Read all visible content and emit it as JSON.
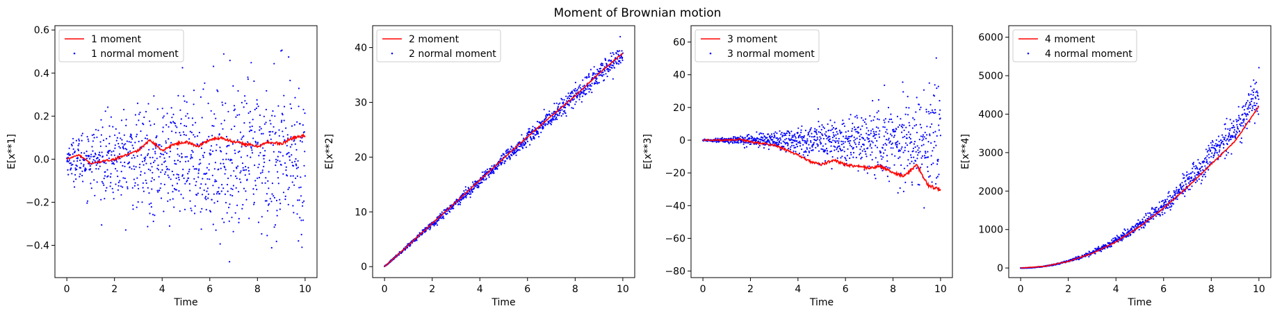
{
  "suptitle": "Moment of Brownian motion",
  "colors": {
    "line": "#ff0000",
    "points": "#0000ff",
    "axes": "#000000",
    "legend_border": "#cccccc"
  },
  "chart_data": [
    {
      "type": "line+scatter",
      "moment": 1,
      "xlabel": "Time",
      "ylabel": "E[x**1]",
      "xlim": [
        -0.5,
        10.5
      ],
      "ylim": [
        -0.55,
        0.62
      ],
      "xticks": [
        0,
        2,
        4,
        6,
        8,
        10
      ],
      "yticks": [
        -0.4,
        -0.2,
        0.0,
        0.2,
        0.4,
        0.6
      ],
      "ytick_labels": [
        "−0.4",
        "−0.2",
        "0.0",
        "0.2",
        "0.4",
        "0.6"
      ],
      "legend": {
        "placement": "upper-left",
        "entries": [
          "1 moment",
          "1 normal moment"
        ]
      },
      "series": [
        {
          "name": "1 moment",
          "kind": "line",
          "x": [
            0,
            0.5,
            1,
            1.5,
            2,
            2.5,
            3,
            3.5,
            4,
            4.5,
            5,
            5.5,
            6,
            6.5,
            7,
            7.5,
            8,
            8.5,
            9,
            9.5,
            10
          ],
          "y": [
            0.0,
            0.02,
            -0.02,
            -0.01,
            0.0,
            0.02,
            0.04,
            0.09,
            0.04,
            0.07,
            0.08,
            0.06,
            0.09,
            0.1,
            0.08,
            0.07,
            0.06,
            0.08,
            0.07,
            0.1,
            0.11
          ]
        },
        {
          "name": "1 normal moment",
          "kind": "scatter",
          "n": 1000,
          "mean": 0.0,
          "spread_end": 0.32
        }
      ]
    },
    {
      "type": "line+scatter",
      "moment": 2,
      "xlabel": "Time",
      "ylabel": "E[x**2]",
      "xlim": [
        -0.5,
        10.5
      ],
      "ylim": [
        -2.0,
        44.0
      ],
      "xticks": [
        0,
        2,
        4,
        6,
        8,
        10
      ],
      "yticks": [
        0,
        10,
        20,
        30,
        40
      ],
      "ytick_labels": [
        "0",
        "10",
        "20",
        "30",
        "40"
      ],
      "legend": {
        "placement": "upper-left",
        "entries": [
          "2 moment",
          "2 normal moment"
        ]
      },
      "series": [
        {
          "name": "2 moment",
          "kind": "line",
          "x": [
            0,
            1,
            2,
            3,
            4,
            5,
            6,
            7,
            8,
            9,
            10
          ],
          "y": [
            0,
            3.9,
            7.9,
            11.8,
            15.8,
            19.8,
            23.7,
            27.5,
            31.2,
            35.3,
            39.0
          ]
        },
        {
          "name": "2 normal moment",
          "kind": "scatter",
          "n": 1000,
          "mean_slope": 3.9,
          "spread_end": 2.2
        }
      ]
    },
    {
      "type": "line+scatter",
      "moment": 3,
      "xlabel": "Time",
      "ylabel": "E[x**3]",
      "xlim": [
        -0.5,
        10.5
      ],
      "ylim": [
        -84.0,
        70.0
      ],
      "xticks": [
        0,
        2,
        4,
        6,
        8,
        10
      ],
      "yticks": [
        -80,
        -60,
        -40,
        -20,
        0,
        20,
        40,
        60
      ],
      "ytick_labels": [
        "−80",
        "−60",
        "−40",
        "−20",
        "0",
        "20",
        "40",
        "60"
      ],
      "legend": {
        "placement": "upper-left",
        "entries": [
          "3 moment",
          "3 normal moment"
        ]
      },
      "series": [
        {
          "name": "3 moment",
          "kind": "line",
          "x": [
            0,
            0.5,
            1,
            1.5,
            2,
            2.5,
            3,
            3.5,
            4,
            4.5,
            5,
            5.5,
            6,
            6.5,
            7,
            7.5,
            8,
            8.5,
            9,
            9.5,
            10
          ],
          "y": [
            0,
            0,
            0,
            0.5,
            -1,
            -2,
            -3,
            -6,
            -9,
            -13,
            -15,
            -12,
            -15,
            -16,
            -17,
            -16,
            -20,
            -22,
            -15,
            -28,
            -30
          ]
        },
        {
          "name": "3 normal moment",
          "kind": "scatter",
          "n": 1000,
          "mean": 0.0,
          "spread_end": 28
        }
      ]
    },
    {
      "type": "line+scatter",
      "moment": 4,
      "xlabel": "Time",
      "ylabel": "E[x**4]",
      "xlim": [
        -0.5,
        10.5
      ],
      "ylim": [
        -250,
        6300
      ],
      "xticks": [
        0,
        2,
        4,
        6,
        8,
        10
      ],
      "yticks": [
        0,
        1000,
        2000,
        3000,
        4000,
        5000,
        6000
      ],
      "ytick_labels": [
        "0",
        "1000",
        "2000",
        "3000",
        "4000",
        "5000",
        "6000"
      ],
      "legend": {
        "placement": "upper-left",
        "entries": [
          "4 moment",
          "4 normal moment"
        ]
      },
      "series": [
        {
          "name": "4 moment",
          "kind": "line",
          "x": [
            0,
            1,
            2,
            3,
            4,
            5,
            6,
            7,
            8,
            9,
            10
          ],
          "y": [
            0,
            42,
            170,
            380,
            680,
            1080,
            1560,
            2100,
            2700,
            3300,
            4200
          ]
        },
        {
          "name": "4 normal moment",
          "kind": "scatter",
          "n": 1000,
          "mean_coef": 45,
          "spread_end": 500
        }
      ]
    }
  ]
}
